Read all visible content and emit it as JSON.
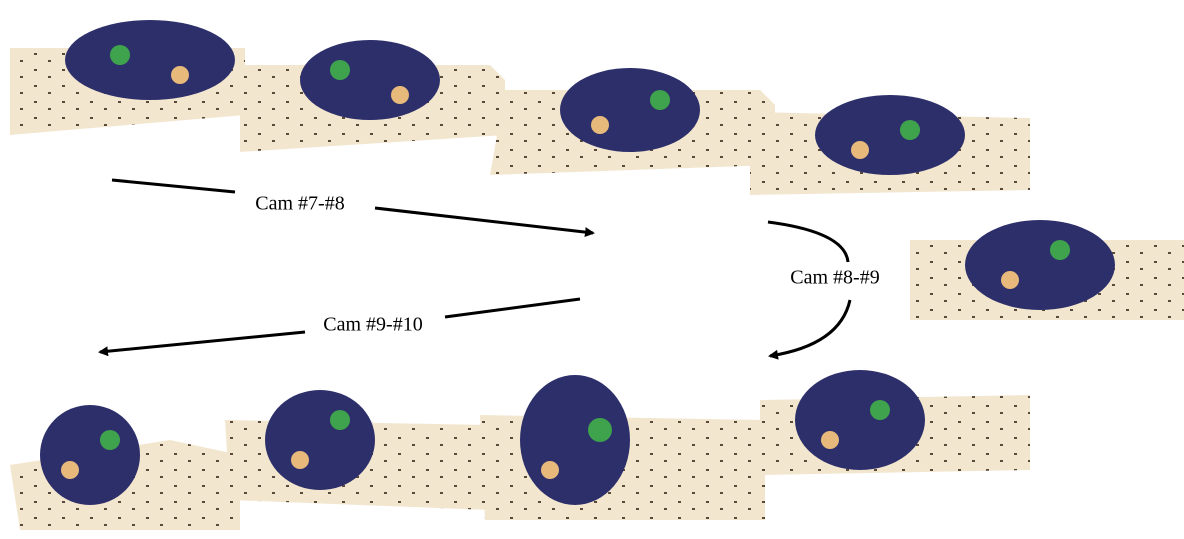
{
  "transitions": [
    {
      "label": "Cam #7-#8"
    },
    {
      "label": "Cam #8-#9"
    },
    {
      "label": "Cam #9-#10"
    }
  ]
}
